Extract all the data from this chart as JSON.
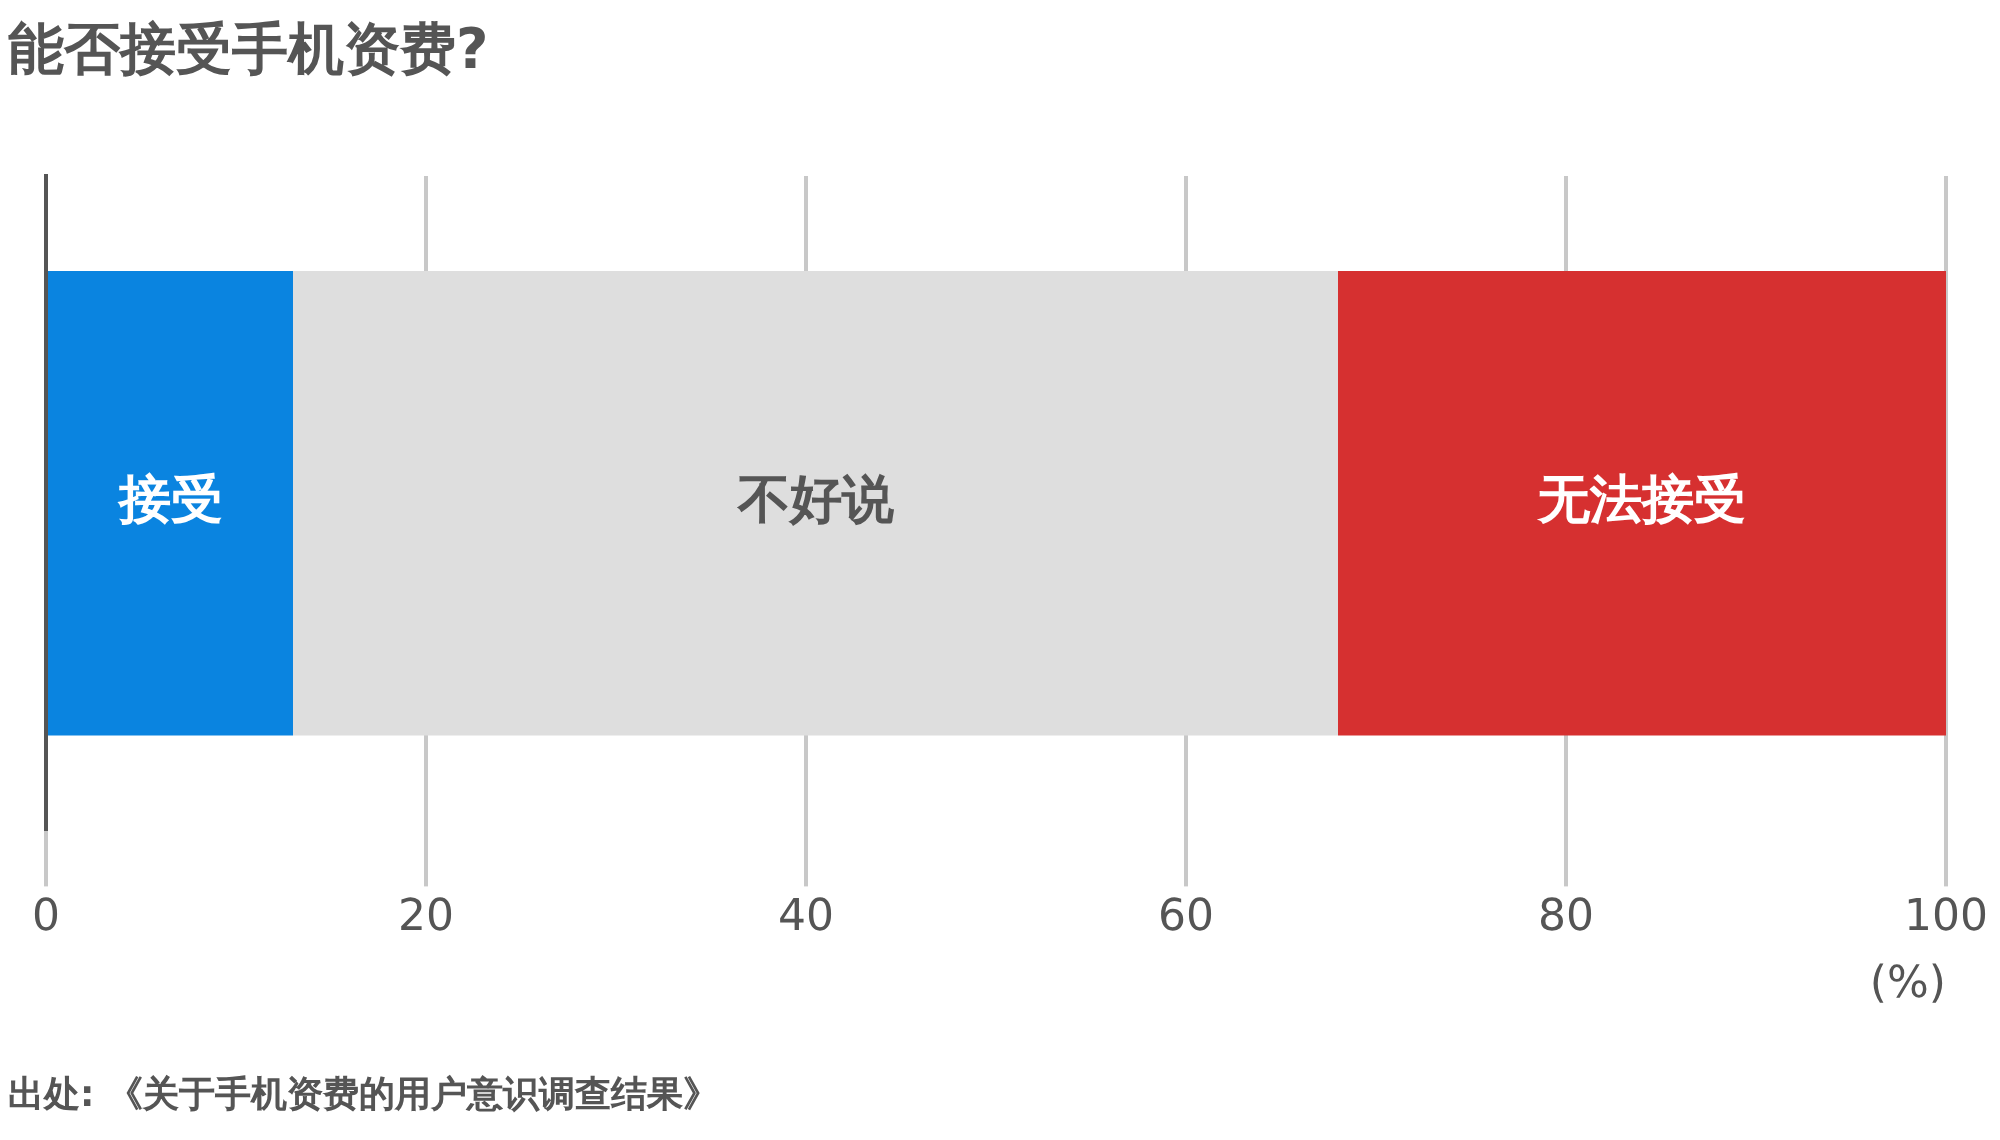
{
  "chart_data": {
    "type": "bar",
    "orientation": "horizontal",
    "stacked": true,
    "title": "能否接受手机资费?",
    "xlabel": "(%)",
    "categories": [
      null
    ],
    "series": [
      {
        "name": "接受",
        "color": "#0a84e0",
        "values": [
          13
        ]
      },
      {
        "name": "不好说",
        "color": "#dedede",
        "values": [
          55
        ]
      },
      {
        "name": "无法接受",
        "color": "#d63030",
        "values": [
          32
        ]
      }
    ],
    "xlim": [
      0,
      100
    ],
    "xticks": [
      0,
      20,
      40,
      60,
      80,
      100
    ],
    "grid": "x",
    "legend": false,
    "tick_labels": "x",
    "annotations": [
      "出处: 《关于手机资费的用户意识调查结果》"
    ]
  }
}
